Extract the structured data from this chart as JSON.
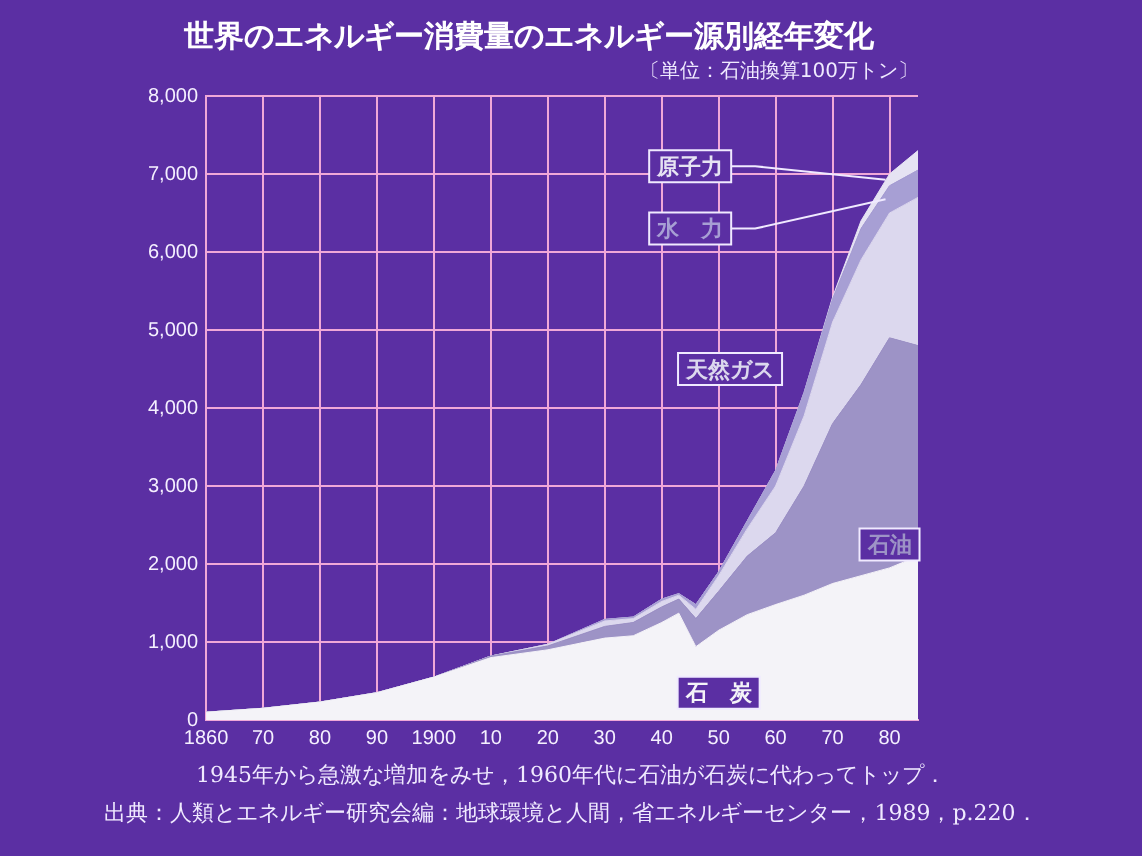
{
  "chart_data": {
    "type": "area",
    "title": "世界のエネルギー消費量のエネルギー源別経年変化",
    "subtitle": "〔単位：石油換算100万トン〕",
    "x": [
      1860,
      1870,
      1880,
      1890,
      1900,
      1910,
      1920,
      1930,
      1935,
      1940,
      1943,
      1946,
      1950,
      1955,
      1960,
      1965,
      1970,
      1975,
      1980,
      1985
    ],
    "stacked": true,
    "series": [
      {
        "name": "石　炭",
        "color": "#f4f3f8",
        "values": [
          100,
          150,
          230,
          350,
          550,
          800,
          900,
          1050,
          1080,
          1250,
          1370,
          940,
          1150,
          1350,
          1480,
          1600,
          1750,
          1850,
          1950,
          2100
        ]
      },
      {
        "name": "石油",
        "color": "#9d93c6",
        "values": [
          0,
          0,
          0,
          0,
          0,
          20,
          50,
          150,
          170,
          200,
          180,
          360,
          500,
          750,
          920,
          1400,
          2050,
          2450,
          2950,
          2700
        ]
      },
      {
        "name": "天然ガス",
        "color": "#dcd8ee",
        "values": [
          0,
          0,
          0,
          0,
          0,
          0,
          20,
          70,
          50,
          70,
          50,
          120,
          200,
          350,
          600,
          900,
          1300,
          1600,
          1600,
          1900
        ]
      },
      {
        "name": "水　力",
        "color": "#a79fd4",
        "values": [
          0,
          0,
          0,
          0,
          0,
          0,
          0,
          20,
          20,
          30,
          20,
          60,
          50,
          100,
          200,
          300,
          300,
          400,
          350,
          350
        ]
      },
      {
        "name": "原子力",
        "color": "#e6e3f3",
        "values": [
          0,
          0,
          0,
          0,
          0,
          0,
          0,
          0,
          0,
          0,
          0,
          0,
          0,
          0,
          0,
          0,
          20,
          100,
          150,
          250
        ]
      }
    ],
    "xlim": [
      1860,
      1985
    ],
    "xticks": [
      {
        "value": 1860,
        "label": "1860"
      },
      {
        "value": 1870,
        "label": "70"
      },
      {
        "value": 1880,
        "label": "80"
      },
      {
        "value": 1890,
        "label": "90"
      },
      {
        "value": 1900,
        "label": "1900"
      },
      {
        "value": 1910,
        "label": "10"
      },
      {
        "value": 1920,
        "label": "20"
      },
      {
        "value": 1930,
        "label": "30"
      },
      {
        "value": 1940,
        "label": "40"
      },
      {
        "value": 1950,
        "label": "50"
      },
      {
        "value": 1960,
        "label": "60"
      },
      {
        "value": 1970,
        "label": "70"
      },
      {
        "value": 1980,
        "label": "80"
      }
    ],
    "ylim": [
      0,
      8000
    ],
    "yticks": [
      {
        "value": 0,
        "label": "0"
      },
      {
        "value": 1000,
        "label": "1,000"
      },
      {
        "value": 2000,
        "label": "2,000"
      },
      {
        "value": 3000,
        "label": "3,000"
      },
      {
        "value": 4000,
        "label": "4,000"
      },
      {
        "value": 5000,
        "label": "5,000"
      },
      {
        "value": 6000,
        "label": "6,000"
      },
      {
        "value": 7000,
        "label": "7,000"
      },
      {
        "value": 8000,
        "label": "8,000"
      }
    ],
    "grid": true,
    "legend": false,
    "annotations": [
      "1945年から急激な増加をみせ，1960年代に石油が石炭に代わってトップ．",
      "出典：人類とエネルギー研究会編：地球環境と人間，省エネルギーセンター，1989，p.220．"
    ]
  }
}
